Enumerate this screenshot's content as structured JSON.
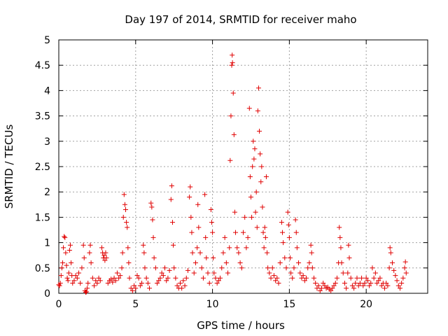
{
  "chart_data": {
    "type": "scatter",
    "title": "Day 197 of 2014, SRMTID for receiver maho",
    "xlabel": "GPS time / hours",
    "ylabel": "SRMTID / TECUs",
    "xlim": [
      0,
      24
    ],
    "ylim": [
      0,
      5
    ],
    "xticks": [
      0,
      5,
      10,
      15,
      20
    ],
    "xtick_labels": [
      "0",
      "5",
      "10",
      "15",
      "20"
    ],
    "yticks": [
      0,
      0.5,
      1,
      1.5,
      2,
      2.5,
      3,
      3.5,
      4,
      4.5,
      5
    ],
    "ytick_labels": [
      "0",
      "0.5",
      "1",
      "1.5",
      "2",
      "2.5",
      "3",
      "3.5",
      "4",
      "4.5",
      "5"
    ],
    "grid": true,
    "marker": "+",
    "color": "#e00000",
    "series": [
      {
        "name": "SRMTID",
        "points": [
          [
            0.0,
            0.17
          ],
          [
            0.05,
            0.15
          ],
          [
            0.1,
            0.2
          ],
          [
            0.15,
            0.35
          ],
          [
            0.2,
            0.5
          ],
          [
            0.25,
            0.6
          ],
          [
            0.3,
            0.9
          ],
          [
            0.35,
            1.12
          ],
          [
            0.4,
            1.1
          ],
          [
            0.45,
            0.8
          ],
          [
            0.5,
            0.55
          ],
          [
            0.55,
            0.3
          ],
          [
            0.6,
            0.25
          ],
          [
            0.65,
            0.4
          ],
          [
            0.7,
            0.85
          ],
          [
            0.75,
            0.95
          ],
          [
            0.8,
            0.6
          ],
          [
            0.85,
            0.35
          ],
          [
            0.9,
            0.2
          ],
          [
            1.0,
            0.25
          ],
          [
            1.1,
            0.35
          ],
          [
            1.2,
            0.3
          ],
          [
            1.3,
            0.4
          ],
          [
            1.4,
            0.2
          ],
          [
            1.5,
            0.5
          ],
          [
            1.6,
            0.95
          ],
          [
            1.65,
            0.7
          ],
          [
            1.7,
            0.05
          ],
          [
            1.75,
            0.02
          ],
          [
            1.8,
            0.03
          ],
          [
            1.85,
            0.1
          ],
          [
            1.9,
            0.2
          ],
          [
            2.0,
            0.8
          ],
          [
            2.05,
            0.95
          ],
          [
            2.1,
            0.6
          ],
          [
            2.2,
            0.3
          ],
          [
            2.3,
            0.15
          ],
          [
            2.4,
            0.25
          ],
          [
            2.5,
            0.2
          ],
          [
            2.6,
            0.3
          ],
          [
            2.7,
            0.25
          ],
          [
            2.8,
            0.9
          ],
          [
            2.85,
            0.8
          ],
          [
            2.9,
            0.7
          ],
          [
            2.95,
            0.75
          ],
          [
            3.0,
            0.65
          ],
          [
            3.05,
            0.8
          ],
          [
            3.1,
            0.7
          ],
          [
            3.2,
            0.2
          ],
          [
            3.3,
            0.25
          ],
          [
            3.4,
            0.28
          ],
          [
            3.5,
            0.22
          ],
          [
            3.6,
            0.3
          ],
          [
            3.7,
            0.25
          ],
          [
            3.8,
            0.4
          ],
          [
            3.9,
            0.3
          ],
          [
            4.0,
            0.35
          ],
          [
            4.1,
            0.5
          ],
          [
            4.15,
            0.8
          ],
          [
            4.2,
            1.5
          ],
          [
            4.25,
            1.95
          ],
          [
            4.3,
            1.75
          ],
          [
            4.35,
            1.65
          ],
          [
            4.4,
            1.4
          ],
          [
            4.45,
            1.3
          ],
          [
            4.5,
            0.9
          ],
          [
            4.55,
            0.6
          ],
          [
            4.6,
            0.3
          ],
          [
            4.7,
            0.1
          ],
          [
            4.8,
            0.05
          ],
          [
            4.9,
            0.15
          ],
          [
            5.0,
            0.1
          ],
          [
            5.1,
            0.35
          ],
          [
            5.2,
            0.3
          ],
          [
            5.3,
            0.15
          ],
          [
            5.4,
            0.2
          ],
          [
            5.5,
            0.95
          ],
          [
            5.55,
            0.8
          ],
          [
            5.6,
            0.5
          ],
          [
            5.7,
            0.3
          ],
          [
            5.8,
            0.2
          ],
          [
            5.9,
            0.1
          ],
          [
            6.0,
            1.78
          ],
          [
            6.05,
            1.7
          ],
          [
            6.1,
            1.45
          ],
          [
            6.15,
            1.1
          ],
          [
            6.2,
            0.7
          ],
          [
            6.3,
            0.5
          ],
          [
            6.4,
            0.2
          ],
          [
            6.5,
            0.25
          ],
          [
            6.6,
            0.3
          ],
          [
            6.7,
            0.4
          ],
          [
            6.8,
            0.35
          ],
          [
            6.9,
            0.5
          ],
          [
            7.0,
            0.25
          ],
          [
            7.1,
            0.3
          ],
          [
            7.2,
            0.45
          ],
          [
            7.3,
            1.85
          ],
          [
            7.35,
            2.12
          ],
          [
            7.4,
            1.4
          ],
          [
            7.45,
            0.95
          ],
          [
            7.5,
            0.5
          ],
          [
            7.6,
            0.3
          ],
          [
            7.7,
            0.15
          ],
          [
            7.8,
            0.1
          ],
          [
            7.9,
            0.2
          ],
          [
            8.0,
            0.1
          ],
          [
            8.1,
            0.25
          ],
          [
            8.2,
            0.15
          ],
          [
            8.3,
            0.3
          ],
          [
            8.4,
            0.45
          ],
          [
            8.5,
            1.9
          ],
          [
            8.55,
            2.1
          ],
          [
            8.6,
            1.5
          ],
          [
            8.65,
            1.2
          ],
          [
            8.7,
            0.8
          ],
          [
            8.8,
            0.4
          ],
          [
            8.9,
            0.6
          ],
          [
            9.0,
            0.9
          ],
          [
            9.05,
            1.75
          ],
          [
            9.1,
            1.3
          ],
          [
            9.2,
            0.8
          ],
          [
            9.3,
            0.5
          ],
          [
            9.4,
            0.3
          ],
          [
            9.5,
            1.95
          ],
          [
            9.55,
            1.1
          ],
          [
            9.6,
            0.7
          ],
          [
            9.7,
            0.4
          ],
          [
            9.8,
            0.2
          ],
          [
            9.9,
            1.65
          ],
          [
            9.95,
            1.4
          ],
          [
            10.0,
            1.2
          ],
          [
            10.05,
            0.7
          ],
          [
            10.1,
            0.4
          ],
          [
            10.2,
            0.3
          ],
          [
            10.3,
            0.2
          ],
          [
            10.4,
            0.25
          ],
          [
            10.5,
            0.3
          ],
          [
            10.6,
            0.5
          ],
          [
            10.7,
            0.8
          ],
          [
            10.8,
            1.1
          ],
          [
            10.9,
            0.6
          ],
          [
            11.0,
            0.4
          ],
          [
            11.1,
            0.9
          ],
          [
            11.15,
            2.62
          ],
          [
            11.2,
            3.5
          ],
          [
            11.25,
            4.5
          ],
          [
            11.28,
            4.7
          ],
          [
            11.3,
            4.55
          ],
          [
            11.35,
            3.95
          ],
          [
            11.4,
            3.13
          ],
          [
            11.45,
            1.6
          ],
          [
            11.5,
            1.2
          ],
          [
            11.6,
            0.9
          ],
          [
            11.7,
            0.8
          ],
          [
            11.8,
            0.6
          ],
          [
            11.9,
            0.5
          ],
          [
            12.0,
            1.2
          ],
          [
            12.1,
            1.5
          ],
          [
            12.2,
            0.9
          ],
          [
            12.3,
            1.1
          ],
          [
            12.4,
            3.65
          ],
          [
            12.45,
            2.3
          ],
          [
            12.5,
            1.9
          ],
          [
            12.55,
            1.5
          ],
          [
            12.6,
            2.5
          ],
          [
            12.65,
            3.0
          ],
          [
            12.7,
            2.65
          ],
          [
            12.75,
            2.85
          ],
          [
            12.8,
            1.6
          ],
          [
            12.85,
            2.0
          ],
          [
            12.9,
            1.3
          ],
          [
            12.95,
            3.6
          ],
          [
            13.0,
            4.05
          ],
          [
            13.05,
            3.2
          ],
          [
            13.1,
            2.75
          ],
          [
            13.15,
            2.2
          ],
          [
            13.2,
            2.5
          ],
          [
            13.25,
            1.7
          ],
          [
            13.3,
            1.2
          ],
          [
            13.35,
            0.9
          ],
          [
            13.4,
            1.3
          ],
          [
            13.45,
            1.1
          ],
          [
            13.5,
            2.3
          ],
          [
            13.55,
            0.8
          ],
          [
            13.6,
            0.5
          ],
          [
            13.7,
            0.4
          ],
          [
            13.8,
            0.3
          ],
          [
            13.9,
            0.5
          ],
          [
            14.0,
            0.35
          ],
          [
            14.1,
            0.25
          ],
          [
            14.2,
            0.3
          ],
          [
            14.3,
            0.2
          ],
          [
            14.4,
            0.6
          ],
          [
            14.5,
            1.4
          ],
          [
            14.55,
            1.2
          ],
          [
            14.6,
            1.0
          ],
          [
            14.7,
            0.7
          ],
          [
            14.8,
            0.5
          ],
          [
            14.9,
            1.6
          ],
          [
            14.95,
            1.35
          ],
          [
            15.0,
            1.1
          ],
          [
            15.05,
            0.7
          ],
          [
            15.1,
            0.4
          ],
          [
            15.2,
            0.3
          ],
          [
            15.3,
            0.5
          ],
          [
            15.4,
            1.45
          ],
          [
            15.45,
            1.2
          ],
          [
            15.5,
            0.9
          ],
          [
            15.6,
            0.6
          ],
          [
            15.7,
            0.4
          ],
          [
            15.8,
            0.3
          ],
          [
            15.9,
            0.35
          ],
          [
            16.0,
            0.25
          ],
          [
            16.1,
            0.3
          ],
          [
            16.2,
            0.5
          ],
          [
            16.3,
            0.6
          ],
          [
            16.4,
            0.95
          ],
          [
            16.45,
            0.8
          ],
          [
            16.5,
            0.5
          ],
          [
            16.6,
            0.3
          ],
          [
            16.7,
            0.2
          ],
          [
            16.8,
            0.1
          ],
          [
            16.9,
            0.15
          ],
          [
            17.0,
            0.05
          ],
          [
            17.1,
            0.1
          ],
          [
            17.2,
            0.2
          ],
          [
            17.3,
            0.15
          ],
          [
            17.4,
            0.1
          ],
          [
            17.5,
            0.12
          ],
          [
            17.6,
            0.08
          ],
          [
            17.7,
            0.05
          ],
          [
            17.8,
            0.1
          ],
          [
            17.9,
            0.15
          ],
          [
            18.0,
            0.2
          ],
          [
            18.1,
            0.3
          ],
          [
            18.2,
            0.6
          ],
          [
            18.25,
            1.3
          ],
          [
            18.3,
            1.1
          ],
          [
            18.35,
            0.9
          ],
          [
            18.4,
            0.6
          ],
          [
            18.5,
            0.4
          ],
          [
            18.6,
            0.2
          ],
          [
            18.7,
            0.1
          ],
          [
            18.8,
            0.4
          ],
          [
            18.85,
            0.95
          ],
          [
            18.9,
            0.7
          ],
          [
            19.0,
            0.3
          ],
          [
            19.1,
            0.15
          ],
          [
            19.2,
            0.1
          ],
          [
            19.3,
            0.2
          ],
          [
            19.4,
            0.3
          ],
          [
            19.5,
            0.15
          ],
          [
            19.6,
            0.2
          ],
          [
            19.7,
            0.3
          ],
          [
            19.8,
            0.15
          ],
          [
            19.9,
            0.2
          ],
          [
            20.0,
            0.3
          ],
          [
            20.1,
            0.25
          ],
          [
            20.2,
            0.15
          ],
          [
            20.3,
            0.2
          ],
          [
            20.4,
            0.5
          ],
          [
            20.5,
            0.3
          ],
          [
            20.6,
            0.4
          ],
          [
            20.7,
            0.2
          ],
          [
            20.8,
            0.25
          ],
          [
            20.9,
            0.3
          ],
          [
            21.0,
            0.15
          ],
          [
            21.1,
            0.2
          ],
          [
            21.2,
            0.1
          ],
          [
            21.3,
            0.2
          ],
          [
            21.4,
            0.15
          ],
          [
            21.5,
            0.5
          ],
          [
            21.55,
            0.9
          ],
          [
            21.6,
            0.8
          ],
          [
            21.7,
            0.6
          ],
          [
            21.8,
            0.45
          ],
          [
            21.9,
            0.35
          ],
          [
            22.0,
            0.25
          ],
          [
            22.1,
            0.15
          ],
          [
            22.2,
            0.1
          ],
          [
            22.3,
            0.2
          ],
          [
            22.4,
            0.3
          ],
          [
            22.5,
            0.5
          ],
          [
            22.55,
            0.62
          ],
          [
            22.6,
            0.4
          ]
        ]
      }
    ]
  }
}
